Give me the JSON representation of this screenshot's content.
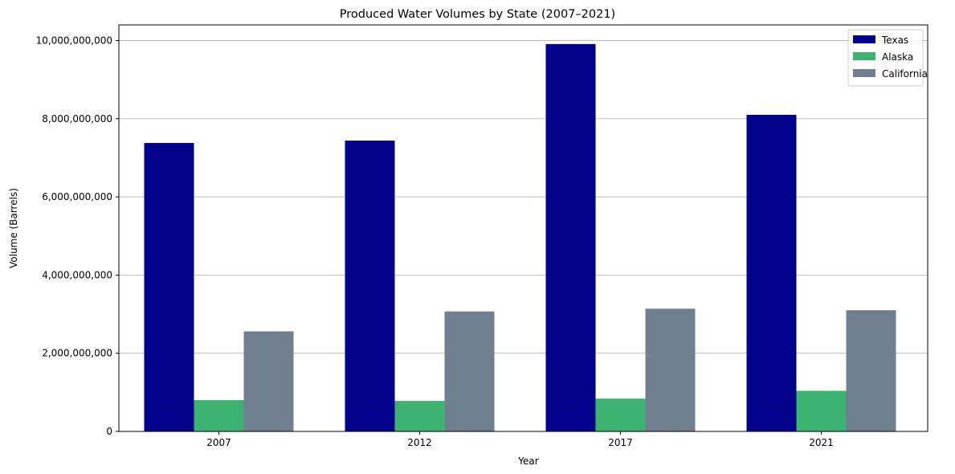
{
  "chart_data": {
    "type": "bar",
    "title": "Produced Water Volumes by State (2007–2021)",
    "xlabel": "Year",
    "ylabel": "Volume (Barrels)",
    "categories": [
      "2007",
      "2012",
      "2017",
      "2021"
    ],
    "series": [
      {
        "name": "Texas",
        "color": "#00008B",
        "values": [
          7380000000,
          7440000000,
          9910000000,
          8100000000
        ]
      },
      {
        "name": "Alaska",
        "color": "#3CB371",
        "values": [
          800000000,
          780000000,
          840000000,
          1040000000
        ]
      },
      {
        "name": "California",
        "color": "#708090",
        "values": [
          2560000000,
          3070000000,
          3140000000,
          3100000000
        ]
      }
    ],
    "ylim": [
      0,
      10400000000
    ],
    "yticks": [
      0,
      2000000000,
      4000000000,
      6000000000,
      8000000000,
      10000000000
    ],
    "ytick_labels": [
      "0",
      "2,000,000,000",
      "4,000,000,000",
      "6,000,000,000",
      "8,000,000,000",
      "10,000,000,000"
    ],
    "grid": {
      "axis": "y",
      "enabled": true,
      "color": "#b0b0b0"
    },
    "legend": {
      "placement": "top-right"
    }
  }
}
